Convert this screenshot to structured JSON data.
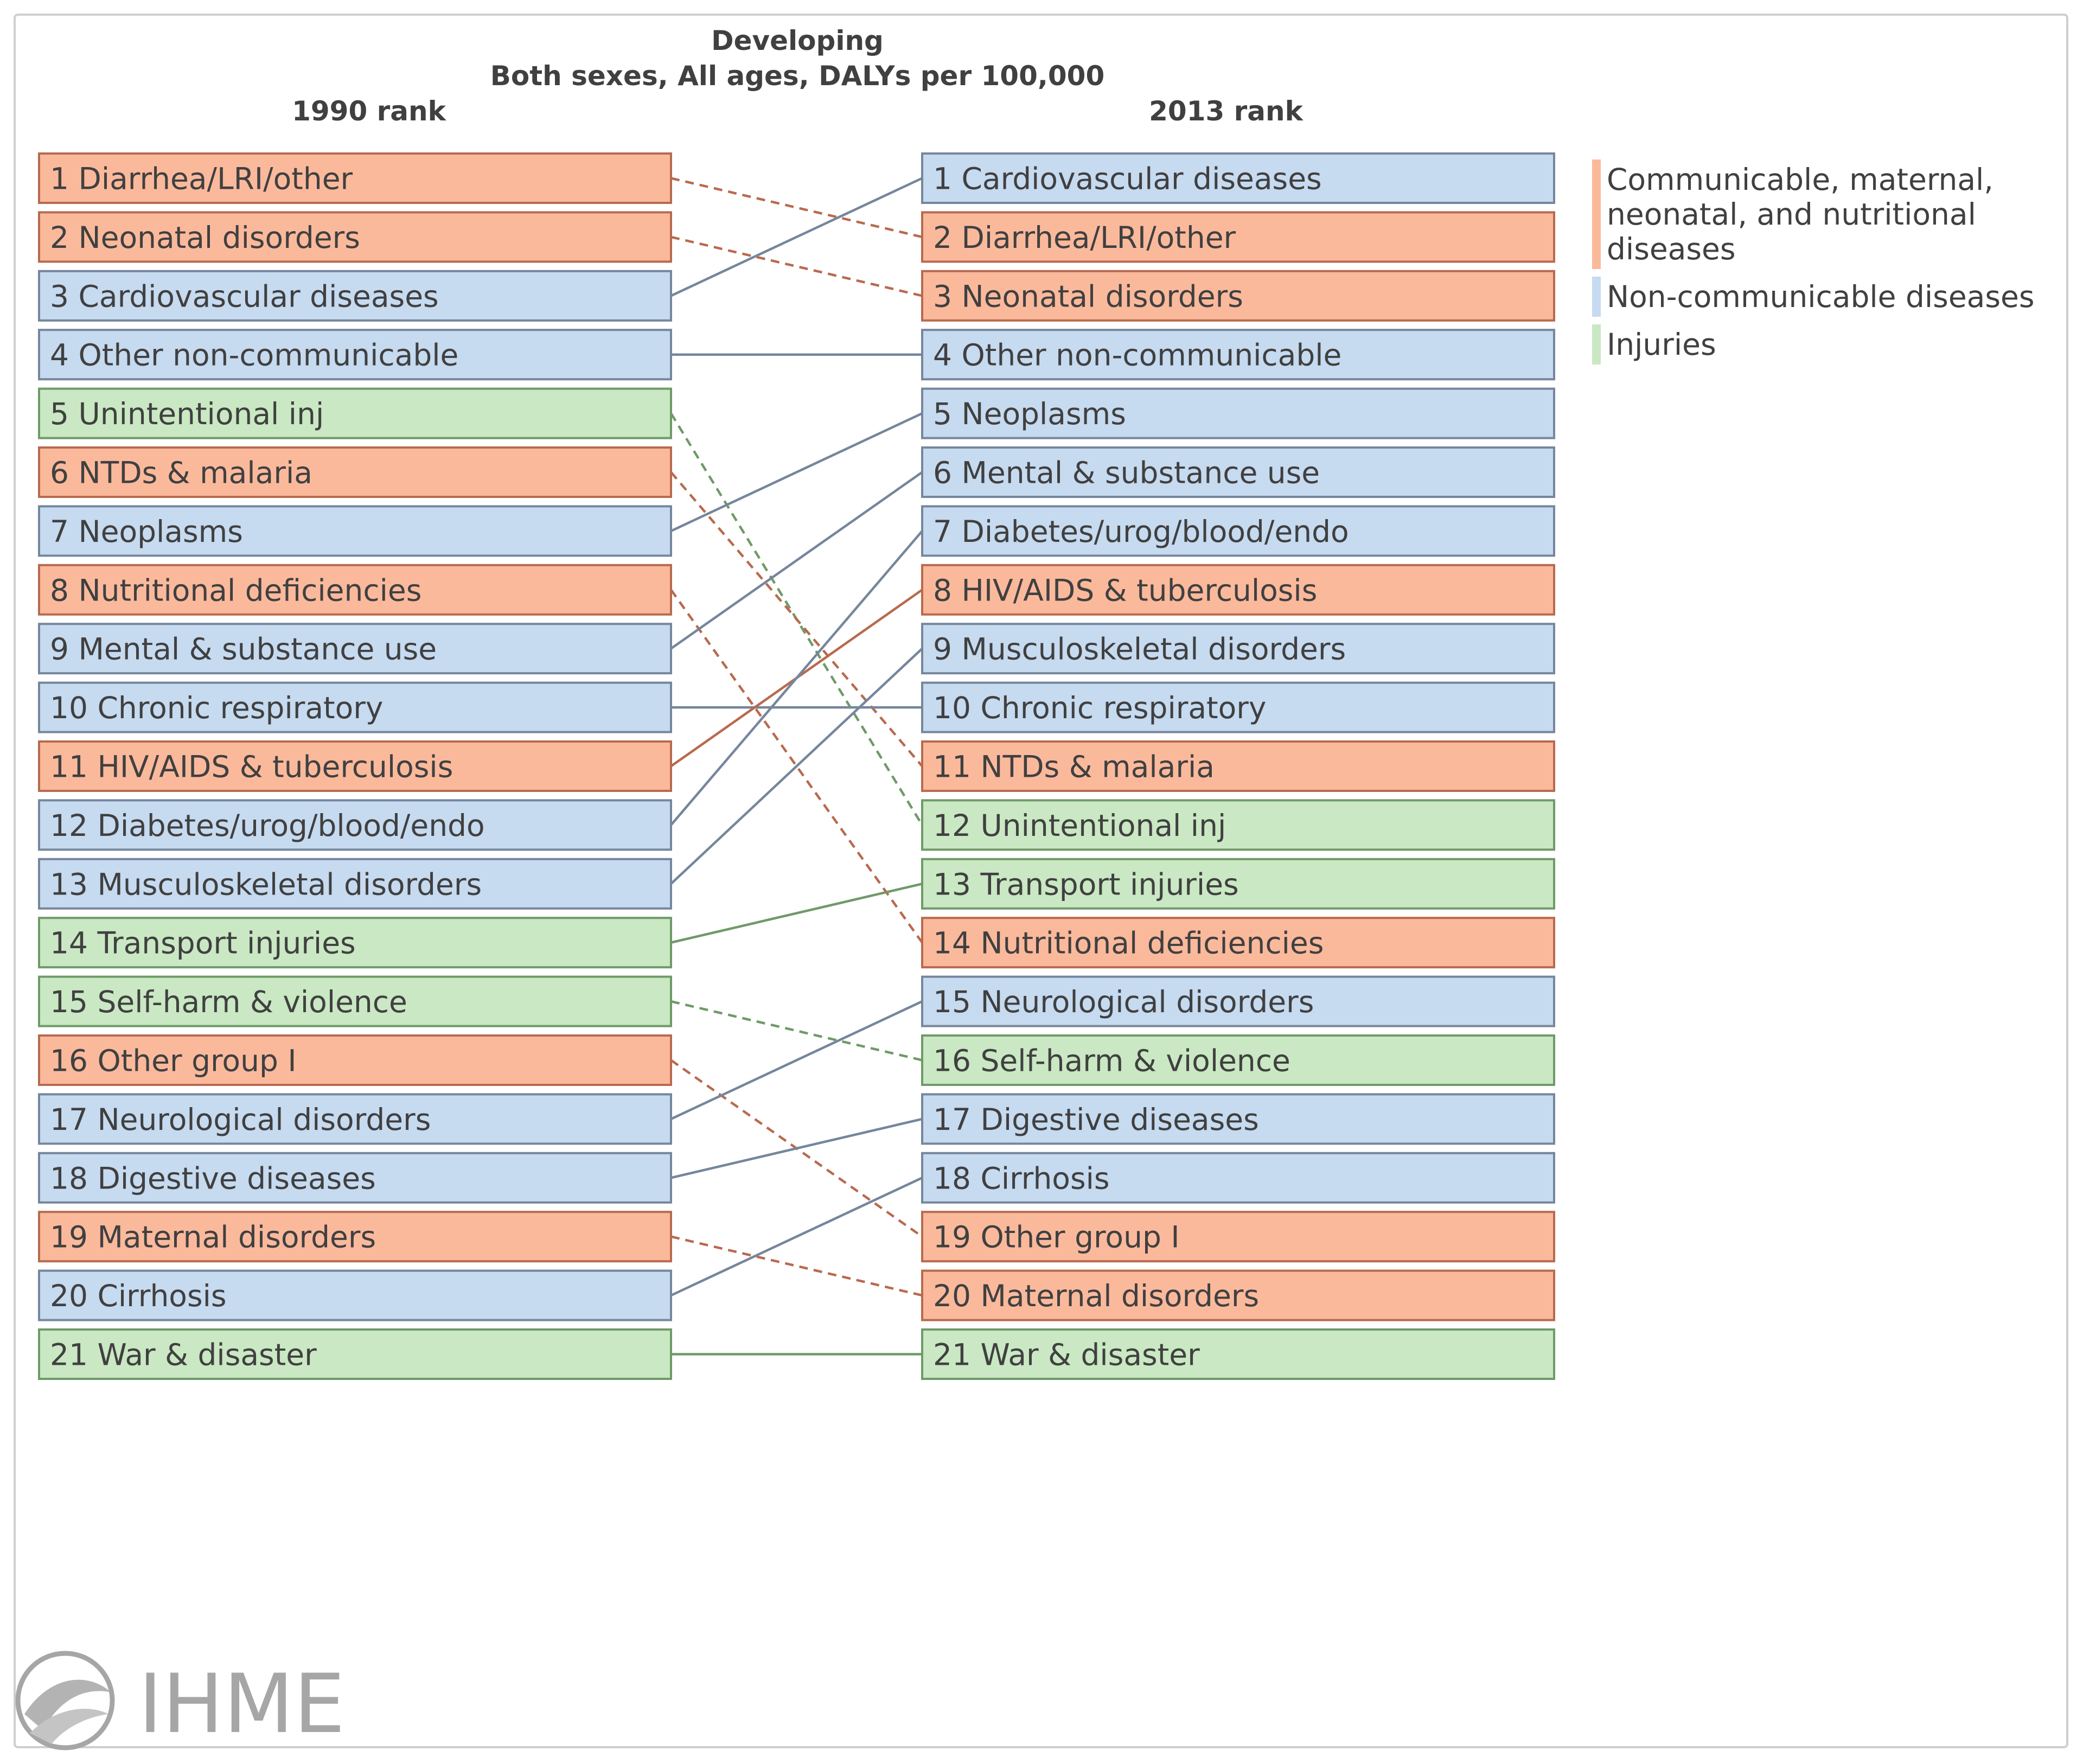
{
  "chart_data": {
    "type": "bump",
    "title": "Developing",
    "subtitle": "Both sexes, All ages, DALYs per 100,000",
    "left_header": "1990 rank",
    "right_header": "2013 rank",
    "categories": {
      "cmnn": {
        "label": "Communicable, maternal, neonatal, and nutritional diseases",
        "label_lines": [
          "Communicable, maternal,",
          "neonatal, and nutritional",
          "diseases"
        ],
        "fill": "#fbb99c",
        "stroke": "#b86a4e",
        "swatch": "#fbb99c"
      },
      "ncd": {
        "label": "Non-communicable diseases",
        "label_lines": [
          "Non-communicable diseases"
        ],
        "fill": "#c6daf0",
        "stroke": "#75869c",
        "swatch": "#c6daf0"
      },
      "inj": {
        "label": "Injuries",
        "label_lines": [
          "Injuries"
        ],
        "fill": "#c9e8c3",
        "stroke": "#6f9a68",
        "swatch": "#c9e8c3"
      }
    },
    "causes": [
      {
        "name": "Diarrhea/LRI/other",
        "category": "cmnn",
        "rank_1990": 1,
        "rank_2013": 2
      },
      {
        "name": "Neonatal disorders",
        "category": "cmnn",
        "rank_1990": 2,
        "rank_2013": 3
      },
      {
        "name": "Cardiovascular diseases",
        "category": "ncd",
        "rank_1990": 3,
        "rank_2013": 1
      },
      {
        "name": "Other non-communicable",
        "category": "ncd",
        "rank_1990": 4,
        "rank_2013": 4
      },
      {
        "name": "Unintentional inj",
        "category": "inj",
        "rank_1990": 5,
        "rank_2013": 12
      },
      {
        "name": "NTDs & malaria",
        "category": "cmnn",
        "rank_1990": 6,
        "rank_2013": 11
      },
      {
        "name": "Neoplasms",
        "category": "ncd",
        "rank_1990": 7,
        "rank_2013": 5
      },
      {
        "name": "Nutritional deficiencies",
        "category": "cmnn",
        "rank_1990": 8,
        "rank_2013": 14
      },
      {
        "name": "Mental & substance use",
        "category": "ncd",
        "rank_1990": 9,
        "rank_2013": 6
      },
      {
        "name": "Chronic respiratory",
        "category": "ncd",
        "rank_1990": 10,
        "rank_2013": 10
      },
      {
        "name": "HIV/AIDS & tuberculosis",
        "category": "cmnn",
        "rank_1990": 11,
        "rank_2013": 8
      },
      {
        "name": "Diabetes/urog/blood/endo",
        "category": "ncd",
        "rank_1990": 12,
        "rank_2013": 7
      },
      {
        "name": "Musculoskeletal disorders",
        "category": "ncd",
        "rank_1990": 13,
        "rank_2013": 9
      },
      {
        "name": "Transport injuries",
        "category": "inj",
        "rank_1990": 14,
        "rank_2013": 13
      },
      {
        "name": "Self-harm & violence",
        "category": "inj",
        "rank_1990": 15,
        "rank_2013": 16
      },
      {
        "name": "Other group I",
        "category": "cmnn",
        "rank_1990": 16,
        "rank_2013": 19
      },
      {
        "name": "Neurological disorders",
        "category": "ncd",
        "rank_1990": 17,
        "rank_2013": 15
      },
      {
        "name": "Digestive diseases",
        "category": "ncd",
        "rank_1990": 18,
        "rank_2013": 17
      },
      {
        "name": "Maternal disorders",
        "category": "cmnn",
        "rank_1990": 19,
        "rank_2013": 20
      },
      {
        "name": "Cirrhosis",
        "category": "ncd",
        "rank_1990": 20,
        "rank_2013": 18
      },
      {
        "name": "War & disaster",
        "category": "inj",
        "rank_1990": 21,
        "rank_2013": 21
      }
    ],
    "line_style_rule": "solid if rank improved or unchanged, dashed if rank worsened",
    "legend_position": "top-right"
  },
  "logo": {
    "text": "IHME"
  }
}
